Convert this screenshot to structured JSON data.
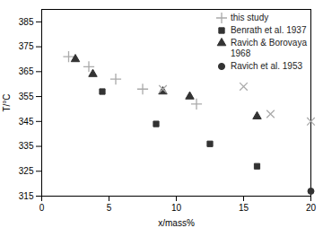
{
  "chart_data": {
    "type": "scatter",
    "xlabel": "x/mass%",
    "ylabel": "T/°C",
    "xlim": [
      0,
      20
    ],
    "ylim": [
      315,
      390
    ],
    "xticks": [
      0,
      5,
      10,
      15,
      20
    ],
    "yticks": [
      315,
      325,
      335,
      345,
      355,
      365,
      375,
      385
    ],
    "grid": false,
    "legend": "upper right",
    "series": [
      {
        "name": "this study",
        "color": "#aaaaaa",
        "marker": "plus",
        "x": [
          2.0,
          3.5,
          5.5,
          7.5,
          11.5
        ],
        "values": [
          371,
          367,
          362,
          358,
          352
        ]
      },
      {
        "name": "Benrath et al. 1937",
        "color": "#333333",
        "marker": "square",
        "x": [
          4.5,
          8.5,
          12.5,
          16.0
        ],
        "values": [
          357,
          344,
          336,
          327
        ]
      },
      {
        "name": "Ravich & Borovaya\n1968",
        "color": "#333333",
        "marker": "triangle",
        "x": [
          2.5,
          3.8,
          9.0,
          11.0,
          16.0
        ],
        "values": [
          370,
          364,
          357,
          355,
          347
        ]
      },
      {
        "name": "Ravich et al. 1953",
        "color": "#333333",
        "marker": "circle",
        "x": [
          20.0
        ],
        "values": [
          317
        ]
      },
      {
        "color": "#aaaaaa",
        "marker": "times",
        "x": [
          9.0,
          15.0,
          17.0,
          20.0
        ],
        "values": [
          358,
          359,
          348,
          345
        ]
      }
    ]
  }
}
